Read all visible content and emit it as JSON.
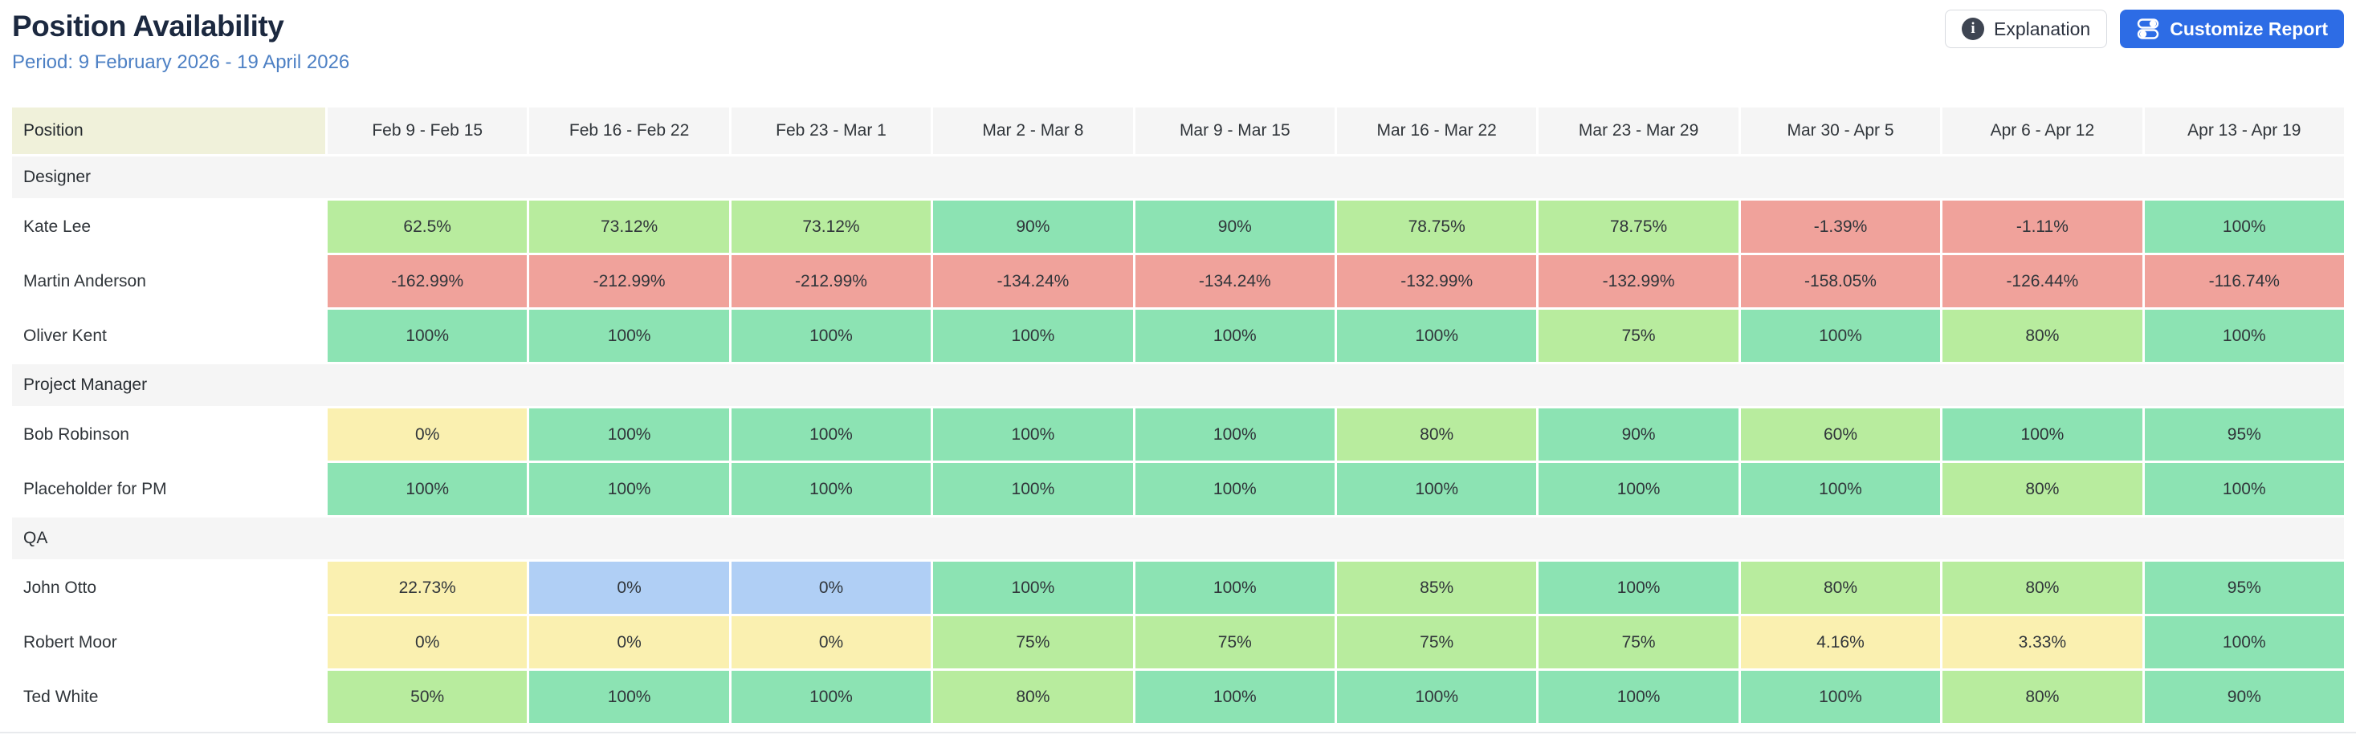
{
  "header": {
    "title": "Position Availability",
    "period": "Period: 9 February 2026 - 19 April 2026",
    "explanation_label": "Explanation",
    "customize_label": "Customize Report"
  },
  "icons": {
    "info": "i",
    "customize": "sliders-icon"
  },
  "colors": {
    "title_text": "#1c2940",
    "period_text": "#4d80c4",
    "customize_button_bg": "#2d6ce5",
    "header_position_bg": "#f0f1da",
    "header_week_bg": "#f5f5f5",
    "group_row_bg": "#f5f5f5",
    "high": "#8ce3b3",
    "mid": "#b8ec9e",
    "low": "#faf0b0",
    "negative": "#f0a29b",
    "info": "#b0cff5"
  },
  "table": {
    "position_header": "Position",
    "week_headers": [
      "Feb 9 - Feb 15",
      "Feb 16 - Feb 22",
      "Feb 23 - Mar 1",
      "Mar 2 - Mar 8",
      "Mar 9 - Mar 15",
      "Mar 16 - Mar 22",
      "Mar 23 - Mar 29",
      "Mar 30 - Apr 5",
      "Apr 6 - Apr 12",
      "Apr 13 - Apr 19"
    ],
    "groups": [
      {
        "name": "Designer",
        "rows": [
          {
            "name": "Kate Lee",
            "cells": [
              {
                "value": "62.5%",
                "tone": "mid"
              },
              {
                "value": "73.12%",
                "tone": "mid"
              },
              {
                "value": "73.12%",
                "tone": "mid"
              },
              {
                "value": "90%",
                "tone": "high"
              },
              {
                "value": "90%",
                "tone": "high"
              },
              {
                "value": "78.75%",
                "tone": "mid"
              },
              {
                "value": "78.75%",
                "tone": "mid"
              },
              {
                "value": "-1.39%",
                "tone": "negative"
              },
              {
                "value": "-1.11%",
                "tone": "negative"
              },
              {
                "value": "100%",
                "tone": "high"
              }
            ]
          },
          {
            "name": "Martin Anderson",
            "cells": [
              {
                "value": "-162.99%",
                "tone": "negative"
              },
              {
                "value": "-212.99%",
                "tone": "negative"
              },
              {
                "value": "-212.99%",
                "tone": "negative"
              },
              {
                "value": "-134.24%",
                "tone": "negative"
              },
              {
                "value": "-134.24%",
                "tone": "negative"
              },
              {
                "value": "-132.99%",
                "tone": "negative"
              },
              {
                "value": "-132.99%",
                "tone": "negative"
              },
              {
                "value": "-158.05%",
                "tone": "negative"
              },
              {
                "value": "-126.44%",
                "tone": "negative"
              },
              {
                "value": "-116.74%",
                "tone": "negative"
              }
            ]
          },
          {
            "name": "Oliver Kent",
            "cells": [
              {
                "value": "100%",
                "tone": "high"
              },
              {
                "value": "100%",
                "tone": "high"
              },
              {
                "value": "100%",
                "tone": "high"
              },
              {
                "value": "100%",
                "tone": "high"
              },
              {
                "value": "100%",
                "tone": "high"
              },
              {
                "value": "100%",
                "tone": "high"
              },
              {
                "value": "75%",
                "tone": "mid"
              },
              {
                "value": "100%",
                "tone": "high"
              },
              {
                "value": "80%",
                "tone": "mid"
              },
              {
                "value": "100%",
                "tone": "high"
              }
            ]
          }
        ]
      },
      {
        "name": "Project Manager",
        "rows": [
          {
            "name": "Bob Robinson",
            "cells": [
              {
                "value": "0%",
                "tone": "low"
              },
              {
                "value": "100%",
                "tone": "high"
              },
              {
                "value": "100%",
                "tone": "high"
              },
              {
                "value": "100%",
                "tone": "high"
              },
              {
                "value": "100%",
                "tone": "high"
              },
              {
                "value": "80%",
                "tone": "mid"
              },
              {
                "value": "90%",
                "tone": "high"
              },
              {
                "value": "60%",
                "tone": "mid"
              },
              {
                "value": "100%",
                "tone": "high"
              },
              {
                "value": "95%",
                "tone": "high"
              }
            ]
          },
          {
            "name": "Placeholder for PM",
            "cells": [
              {
                "value": "100%",
                "tone": "high"
              },
              {
                "value": "100%",
                "tone": "high"
              },
              {
                "value": "100%",
                "tone": "high"
              },
              {
                "value": "100%",
                "tone": "high"
              },
              {
                "value": "100%",
                "tone": "high"
              },
              {
                "value": "100%",
                "tone": "high"
              },
              {
                "value": "100%",
                "tone": "high"
              },
              {
                "value": "100%",
                "tone": "high"
              },
              {
                "value": "80%",
                "tone": "mid"
              },
              {
                "value": "100%",
                "tone": "high"
              }
            ]
          }
        ]
      },
      {
        "name": "QA",
        "rows": [
          {
            "name": "John Otto",
            "cells": [
              {
                "value": "22.73%",
                "tone": "low"
              },
              {
                "value": "0%",
                "tone": "info"
              },
              {
                "value": "0%",
                "tone": "info"
              },
              {
                "value": "100%",
                "tone": "high"
              },
              {
                "value": "100%",
                "tone": "high"
              },
              {
                "value": "85%",
                "tone": "mid"
              },
              {
                "value": "100%",
                "tone": "high"
              },
              {
                "value": "80%",
                "tone": "mid"
              },
              {
                "value": "80%",
                "tone": "mid"
              },
              {
                "value": "95%",
                "tone": "high"
              }
            ]
          },
          {
            "name": "Robert Moor",
            "cells": [
              {
                "value": "0%",
                "tone": "low"
              },
              {
                "value": "0%",
                "tone": "low"
              },
              {
                "value": "0%",
                "tone": "low"
              },
              {
                "value": "75%",
                "tone": "mid"
              },
              {
                "value": "75%",
                "tone": "mid"
              },
              {
                "value": "75%",
                "tone": "mid"
              },
              {
                "value": "75%",
                "tone": "mid"
              },
              {
                "value": "4.16%",
                "tone": "low"
              },
              {
                "value": "3.33%",
                "tone": "low"
              },
              {
                "value": "100%",
                "tone": "high"
              }
            ]
          },
          {
            "name": "Ted White",
            "cells": [
              {
                "value": "50%",
                "tone": "mid"
              },
              {
                "value": "100%",
                "tone": "high"
              },
              {
                "value": "100%",
                "tone": "high"
              },
              {
                "value": "80%",
                "tone": "mid"
              },
              {
                "value": "100%",
                "tone": "high"
              },
              {
                "value": "100%",
                "tone": "high"
              },
              {
                "value": "100%",
                "tone": "high"
              },
              {
                "value": "100%",
                "tone": "high"
              },
              {
                "value": "80%",
                "tone": "mid"
              },
              {
                "value": "90%",
                "tone": "high"
              }
            ]
          }
        ]
      }
    ]
  }
}
